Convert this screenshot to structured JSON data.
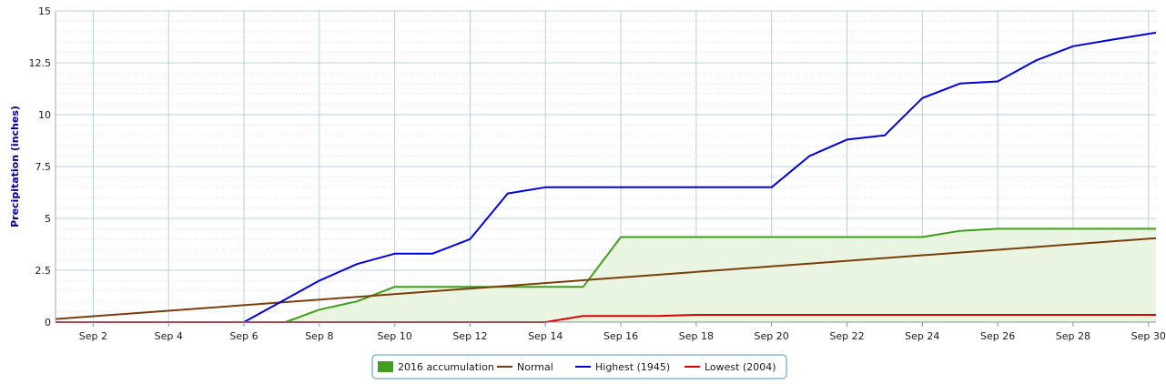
{
  "chart_data": {
    "type": "line",
    "title": "",
    "xlabel": "",
    "ylabel": "Precipitation (inches)",
    "xlim": [
      1,
      30.2
    ],
    "ylim": [
      0,
      15
    ],
    "x_ticks": [
      2,
      4,
      6,
      8,
      10,
      12,
      14,
      16,
      18,
      20,
      22,
      24,
      26,
      28,
      30
    ],
    "x_tick_labels": [
      "Sep 2",
      "Sep 4",
      "Sep 6",
      "Sep 8",
      "Sep 10",
      "Sep 12",
      "Sep 14",
      "Sep 16",
      "Sep 18",
      "Sep 20",
      "Sep 22",
      "Sep 24",
      "Sep 26",
      "Sep 28",
      "Sep 30"
    ],
    "y_ticks": [
      0,
      2.5,
      5,
      7.5,
      10,
      12.5,
      15
    ],
    "y_tick_labels": [
      "0",
      "2.5",
      "5",
      "7.5",
      "10",
      "12.5",
      "15"
    ],
    "grid": true,
    "legend_position": "bottom-center",
    "series": [
      {
        "name": "2016 accumulation",
        "style": "area",
        "color": "#3f9e1b",
        "fill": "#e9f5e1",
        "x": [
          7.1,
          8,
          9,
          10,
          11,
          12,
          13,
          14,
          15,
          16,
          17,
          18,
          19,
          20,
          21,
          22,
          23,
          24,
          25,
          26,
          27,
          28,
          29,
          30.2
        ],
        "y": [
          0,
          0.6,
          1.0,
          1.7,
          1.7,
          1.7,
          1.7,
          1.7,
          1.7,
          4.1,
          4.1,
          4.1,
          4.1,
          4.1,
          4.1,
          4.1,
          4.1,
          4.1,
          4.4,
          4.5,
          4.5,
          4.5,
          4.5,
          4.5
        ]
      },
      {
        "name": "Normal",
        "style": "line",
        "color": "#7a3d0a",
        "x": [
          1,
          30.2
        ],
        "y": [
          0.15,
          4.05
        ]
      },
      {
        "name": "Highest (1945)",
        "style": "line",
        "color": "#0000dd",
        "x": [
          1,
          6,
          7,
          8,
          9,
          10,
          11,
          12,
          13,
          14,
          15,
          16,
          17,
          18,
          19,
          20,
          21,
          22,
          23,
          24,
          25,
          26,
          27,
          28,
          29,
          30.2
        ],
        "y": [
          0,
          0,
          1.0,
          2.0,
          2.8,
          3.3,
          3.3,
          4.0,
          6.2,
          6.5,
          6.5,
          6.5,
          6.5,
          6.5,
          6.5,
          6.5,
          8.0,
          8.8,
          9.0,
          10.8,
          11.5,
          11.6,
          12.6,
          13.3,
          13.6,
          13.95
        ]
      },
      {
        "name": "Lowest (2004)",
        "style": "line",
        "color": "#dd0000",
        "x": [
          1,
          14,
          15,
          16,
          17,
          18,
          30.2
        ],
        "y": [
          0,
          0,
          0.3,
          0.3,
          0.3,
          0.35,
          0.35
        ]
      }
    ]
  }
}
